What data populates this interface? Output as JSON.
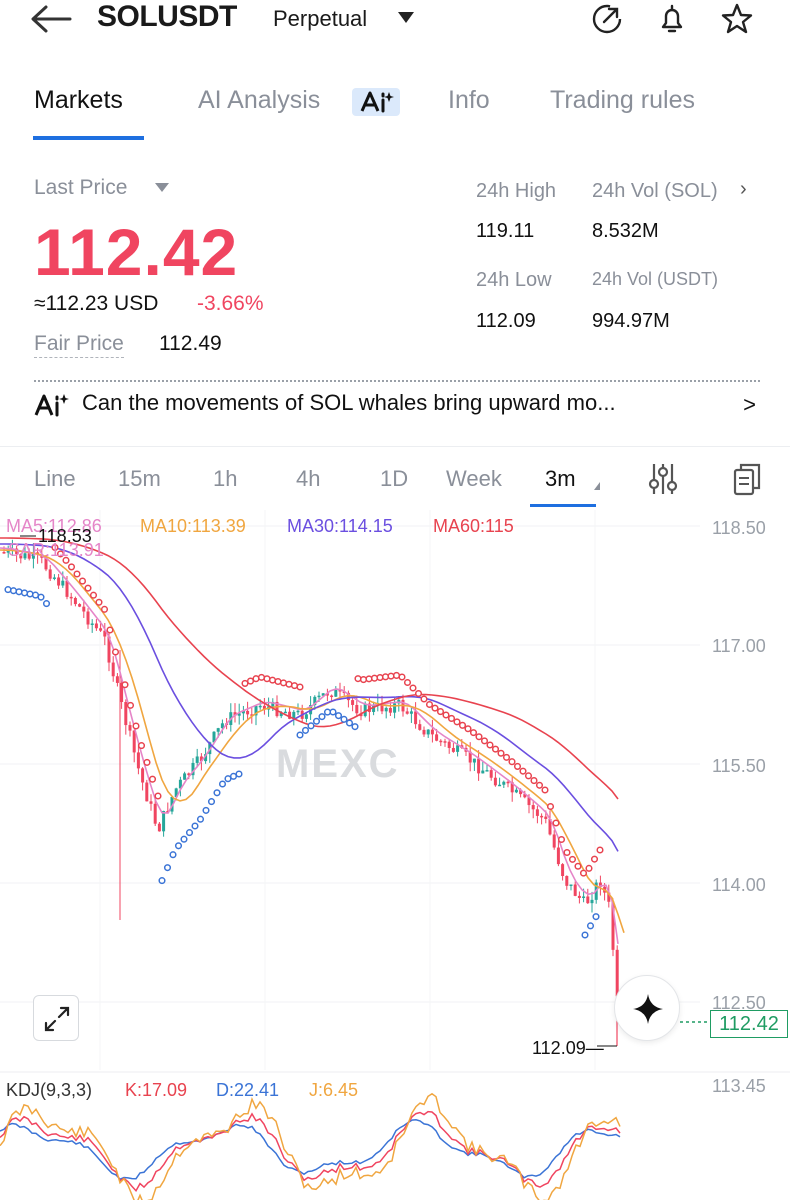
{
  "header": {
    "back_icon": "arrow-left-icon",
    "symbol": "SOLUSDT",
    "contract_type": "Perpetual",
    "icons": [
      "share-refresh-icon",
      "bell-icon",
      "star-icon"
    ]
  },
  "tabs": [
    "Markets",
    "AI Analysis",
    "Info",
    "Trading rules"
  ],
  "active_tab": "Markets",
  "ticker": {
    "last_price_label": "Last Price",
    "last_price": "112.42",
    "usd_equiv": "≈112.23 USD",
    "change_pct": "-3.66%",
    "fair_price_label": "Fair Price",
    "fair_price": "112.49",
    "high_label": "24h High",
    "high": "119.11",
    "vol_sol_label": "24h Vol (SOL)",
    "vol_sol": "8.532M",
    "low_label": "24h Low",
    "low": "112.09",
    "vol_usdt_label": "24h Vol  (USDT)",
    "vol_usdt": "994.97M"
  },
  "ai_banner": {
    "text": "Can the movements of SOL whales bring upward mo...",
    "chevron": ">"
  },
  "intervals": [
    "Line",
    "15m",
    "1h",
    "4h",
    "1D",
    "Week",
    "3m"
  ],
  "active_interval": "3m",
  "indicators": {
    "ma5": "MA5:112.86",
    "ma10": "MA10:113.39",
    "ma30": "MA30:114.15",
    "ma60": "MA60:115",
    "sar": "SAR:113.91",
    "high_marker": "118.53",
    "low_marker": "112.09—",
    "last_tag": "112.42",
    "watermark": "MEXC",
    "y_axis": [
      "118.50",
      "117.00",
      "115.50",
      "114.00",
      "112.50"
    ],
    "kdj_label": "KDJ(9,3,3)",
    "kdj_k": "K:17.09",
    "kdj_d": "D:22.41",
    "kdj_j": "J:6.45",
    "kdj_axis": "113.45"
  },
  "colors": {
    "up": "#26a69a",
    "down": "#f04560",
    "ma5": "#e585c8",
    "ma10": "#f0a640",
    "ma30": "#6b4fe0",
    "ma60": "#e8434f",
    "sar_up": "#3b74d6",
    "sar_down": "#e8434f",
    "accent": "#1e6fe0"
  }
}
